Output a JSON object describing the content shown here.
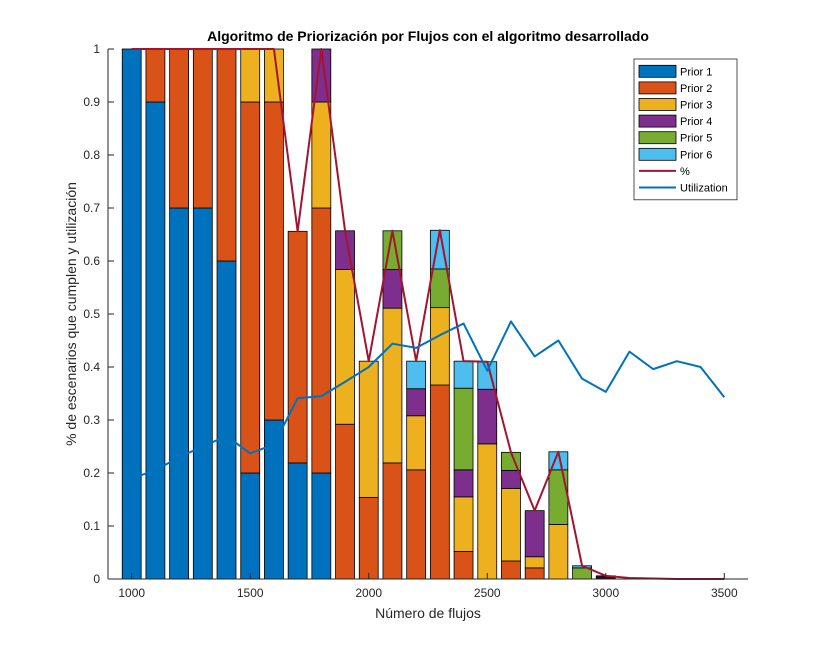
{
  "chart_data": {
    "type": "bar",
    "stacked": true,
    "title": "Algoritmo de Priorización por Flujos con el algoritmo desarrollado",
    "xlabel": "Número de flujos",
    "ylabel": "% de escenarios que cumplen y utilización",
    "xlim": [
      900,
      3600
    ],
    "ylim": [
      0,
      1
    ],
    "xticks": [
      1000,
      1500,
      2000,
      2500,
      3000,
      3500
    ],
    "yticks": [
      0,
      0.1,
      0.2,
      0.3,
      0.4,
      0.5,
      0.6,
      0.7,
      0.8,
      0.9,
      1
    ],
    "ytick_labels": [
      "0",
      "0.1",
      "0.2",
      "0.3",
      "0.4",
      "0.5",
      "0.6",
      "0.7",
      "0.8",
      "0.9",
      "1"
    ],
    "grid": false,
    "legend_position": "top-right",
    "x": [
      1000,
      1100,
      1200,
      1300,
      1400,
      1500,
      1600,
      1700,
      1800,
      1900,
      2000,
      2100,
      2200,
      2300,
      2400,
      2500,
      2600,
      2700,
      2800,
      2900,
      3000,
      3100,
      3200,
      3300,
      3400,
      3500
    ],
    "series": [
      {
        "name": "Prior 1",
        "color": "#0072BD",
        "values": [
          1.0,
          0.9,
          0.7,
          0.7,
          0.6,
          0.2,
          0.3,
          0.219,
          0.2,
          0,
          0,
          0,
          0,
          0,
          0,
          0,
          0,
          0,
          0,
          0,
          0,
          0,
          0,
          0,
          0,
          0
        ]
      },
      {
        "name": "Prior 2",
        "color": "#D95319",
        "values": [
          0,
          0.1,
          0.3,
          0.3,
          0.4,
          0.7,
          0.6,
          0.437,
          0.5,
          0.292,
          0.154,
          0.219,
          0.206,
          0.366,
          0.052,
          0,
          0.034,
          0.021,
          0,
          0,
          0.002,
          0,
          0,
          0,
          0,
          0
        ]
      },
      {
        "name": "Prior 3",
        "color": "#EDB120",
        "values": [
          0,
          0,
          0,
          0,
          0,
          0.1,
          0.1,
          0,
          0.2,
          0.292,
          0.257,
          0.292,
          0.102,
          0.146,
          0.103,
          0.255,
          0.137,
          0.021,
          0.103,
          0,
          0.002,
          0,
          0,
          0,
          0,
          0
        ]
      },
      {
        "name": "Prior 4",
        "color": "#7E2F8E",
        "values": [
          0,
          0,
          0,
          0,
          0,
          0,
          0,
          0,
          0.1,
          0.073,
          0,
          0.073,
          0.051,
          0,
          0.051,
          0.103,
          0.034,
          0.087,
          0,
          0,
          0.002,
          0,
          0,
          0,
          0,
          0
        ]
      },
      {
        "name": "Prior 5",
        "color": "#77AC30",
        "values": [
          0,
          0,
          0,
          0,
          0,
          0,
          0,
          0,
          0,
          0,
          0,
          0.073,
          0,
          0.073,
          0.154,
          0,
          0.034,
          0,
          0.103,
          0.021,
          0,
          0,
          0,
          0,
          0,
          0
        ]
      },
      {
        "name": "Prior 6",
        "color": "#4DBEEE",
        "values": [
          0,
          0,
          0,
          0,
          0,
          0,
          0,
          0,
          0,
          0,
          0,
          0,
          0.052,
          0.073,
          0.051,
          0.052,
          0,
          0,
          0.034,
          0.004,
          0,
          0,
          0,
          0,
          0,
          0
        ]
      }
    ],
    "lines": [
      {
        "name": "%",
        "color": "#A2142F",
        "values": [
          1.0,
          1.0,
          1.0,
          1.0,
          1.0,
          1.0,
          1.0,
          0.656,
          1.0,
          0.657,
          0.411,
          0.657,
          0.411,
          0.658,
          0.411,
          0.41,
          0.239,
          0.129,
          0.24,
          0.025,
          0.006,
          0.002,
          0.001,
          0,
          0,
          0
        ]
      },
      {
        "name": "Utilization",
        "color": "#0072BD",
        "values": [
          0.19,
          0.205,
          0.23,
          0.25,
          0.27,
          0.237,
          0.254,
          0.341,
          0.345,
          0.372,
          0.4,
          0.444,
          0.436,
          0.46,
          0.482,
          0.393,
          0.486,
          0.42,
          0.45,
          0.378,
          0.353,
          0.429,
          0.396,
          0.411,
          0.4,
          0.343
        ]
      }
    ]
  }
}
